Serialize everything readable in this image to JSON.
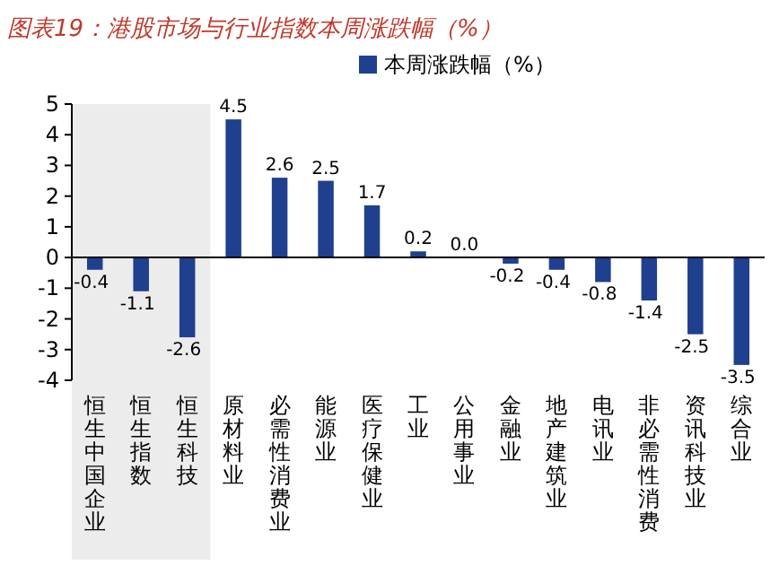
{
  "chart_data": {
    "type": "bar",
    "title": "图表19：港股市场与行业指数本周涨跌幅（%）",
    "categories": [
      "恒生中国企业",
      "恒生指数",
      "恒生科技",
      "原材料业",
      "必需性消费业",
      "能源业",
      "医疗保健业",
      "工业",
      "公用事业",
      "金融业",
      "地产建筑业",
      "电讯业",
      "非必需性消费",
      "资讯科技业",
      "综合业"
    ],
    "series": [
      {
        "name": "本周涨跌幅（%）",
        "color": "#1f3f8f",
        "values": [
          -0.4,
          -1.1,
          -2.6,
          4.5,
          2.6,
          2.5,
          1.7,
          0.2,
          0.0,
          -0.2,
          -0.4,
          -0.8,
          -1.4,
          -2.5,
          -3.5
        ],
        "value_labels": [
          "-0.4",
          "-1.1",
          "-2.6",
          "4.5",
          "2.6",
          "2.5",
          "1.7",
          "0.2",
          "0.0",
          "-0.2",
          "-0.4",
          "-0.8",
          "-1.4",
          "-2.5",
          "-3.5"
        ]
      }
    ],
    "ylim": [
      -4,
      5
    ],
    "yticks": [
      -4,
      -3,
      -2,
      -1,
      0,
      1,
      2,
      3,
      4,
      5
    ],
    "bands": [
      {
        "axis": "x",
        "from": "恒生中国企业",
        "to": "恒生科技",
        "color": "#ececec"
      }
    ],
    "legend": "top"
  }
}
